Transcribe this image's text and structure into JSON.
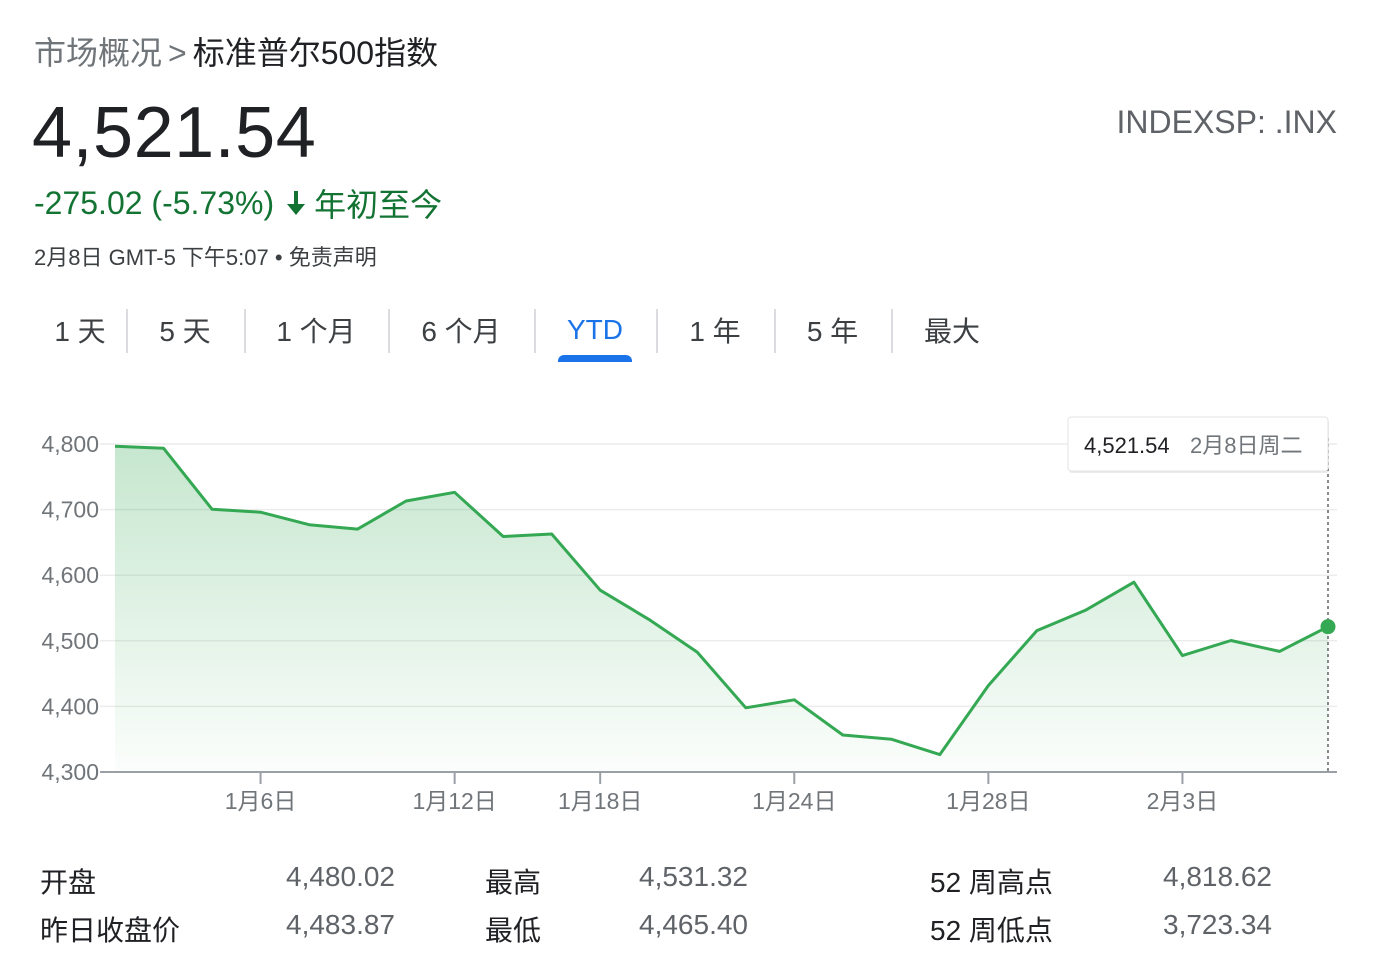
{
  "breadcrumb": {
    "root": "市场概况",
    "separator": ">",
    "current": "标准普尔500指数"
  },
  "quote": {
    "price": "4,521.54",
    "ticker": "INDEXSP: .INX",
    "change": "-275.02 (-5.73%)",
    "change_arrow_icon": "arrow-down-icon",
    "period": "年初至今",
    "timestamp": "2月8日 GMT-5 下午5:07",
    "bullet": "•",
    "disclaimer": "免责声明",
    "change_color": "#137333"
  },
  "tabs": [
    {
      "label": "1 天",
      "active": false
    },
    {
      "label": "5 天",
      "active": false
    },
    {
      "label": "1 个月",
      "active": false
    },
    {
      "label": "6 个月",
      "active": false
    },
    {
      "label": "YTD",
      "active": true
    },
    {
      "label": "1 年",
      "active": false
    },
    {
      "label": "5 年",
      "active": false
    },
    {
      "label": "最大",
      "active": false
    }
  ],
  "colors": {
    "line": "#34a853",
    "accent": "#1a73e8"
  },
  "chart_data": {
    "type": "area",
    "title": "",
    "xlabel": "",
    "ylabel": "",
    "ylim": [
      4300,
      4800
    ],
    "y_ticks": [
      "4,800",
      "4,700",
      "4,600",
      "4,500",
      "4,400",
      "4,300"
    ],
    "x_tick_labels": [
      "1月6日",
      "1月12日",
      "1月18日",
      "1月24日",
      "1月28日",
      "2月3日"
    ],
    "grid": true,
    "tooltip": {
      "value": "4,521.54",
      "date": "2月8日周二"
    },
    "series": [
      {
        "x": [
          "1月3日",
          "1月4日",
          "1月5日",
          "1月6日",
          "1月7日",
          "1月10日",
          "1月11日",
          "1月12日",
          "1月13日",
          "1月14日",
          "1月18日",
          "1月19日",
          "1月20日",
          "1月21日",
          "1月24日",
          "1月25日",
          "1月26日",
          "1月27日",
          "1月28日",
          "1月31日",
          "2月1日",
          "2月2日",
          "2月3日",
          "2月4日",
          "2月7日",
          "2月8日"
        ],
        "values": [
          4796.56,
          4793.54,
          4700.58,
          4696.05,
          4677.03,
          4670.29,
          4713.07,
          4726.35,
          4659.03,
          4662.85,
          4577.11,
          4532.76,
          4482.73,
          4397.94,
          4410.13,
          4356.45,
          4349.93,
          4326.51,
          4431.85,
          4515.55,
          4546.54,
          4589.38,
          4477.44,
          4500.53,
          4483.87,
          4521.54
        ]
      }
    ]
  },
  "stats": [
    {
      "label": "开盘",
      "value": "4,480.02"
    },
    {
      "label": "昨日收盘价",
      "value": "4,483.87"
    },
    {
      "label": "最高",
      "value": "4,531.32"
    },
    {
      "label": "最低",
      "value": "4,465.40"
    },
    {
      "label": "52 周高点",
      "value": "4,818.62"
    },
    {
      "label": "52 周低点",
      "value": "3,723.34"
    }
  ]
}
